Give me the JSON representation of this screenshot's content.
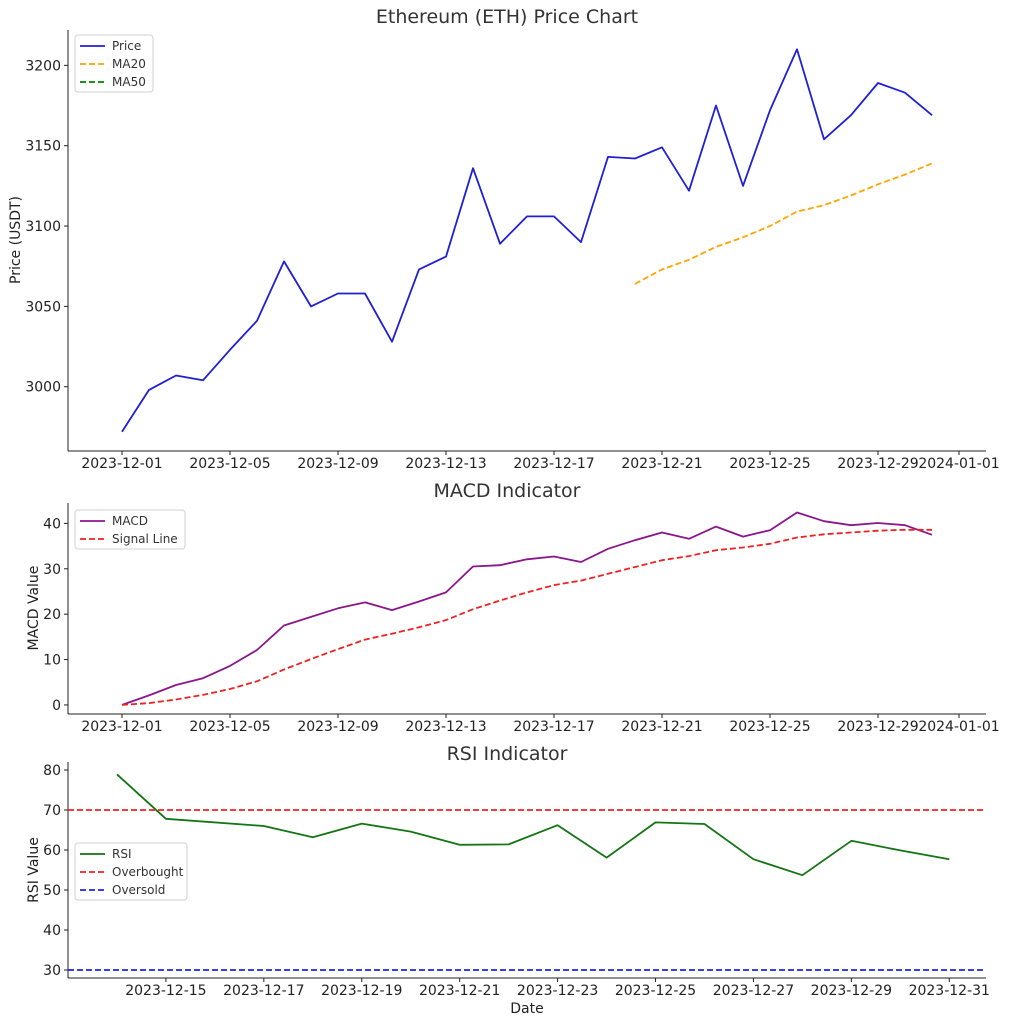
{
  "chart_data": [
    {
      "type": "line",
      "title": "Ethereum (ETH) Price Chart",
      "xlabel": "",
      "ylabel": "Price (USDT)",
      "x_ticks": [
        "2023-12-01",
        "2023-12-05",
        "2023-12-09",
        "2023-12-13",
        "2023-12-17",
        "2023-12-21",
        "2023-12-25",
        "2023-12-29",
        "2024-01-01"
      ],
      "y_ticks": [
        "3000",
        "3050",
        "3100",
        "3150",
        "3200"
      ],
      "x_range": [
        "2023-11-29",
        "2024-01-02"
      ],
      "ylim": [
        2960,
        3222
      ],
      "legend_position": "top-left",
      "series": [
        {
          "name": "Price",
          "color": "#1f1fd6",
          "dash": "solid",
          "x": [
            "2023-12-01",
            "2023-12-02",
            "2023-12-03",
            "2023-12-04",
            "2023-12-05",
            "2023-12-06",
            "2023-12-07",
            "2023-12-08",
            "2023-12-09",
            "2023-12-10",
            "2023-12-11",
            "2023-12-12",
            "2023-12-13",
            "2023-12-14",
            "2023-12-15",
            "2023-12-16",
            "2023-12-17",
            "2023-12-18",
            "2023-12-19",
            "2023-12-20",
            "2023-12-21",
            "2023-12-22",
            "2023-12-23",
            "2023-12-24",
            "2023-12-25",
            "2023-12-26",
            "2023-12-27",
            "2023-12-28",
            "2023-12-29",
            "2023-12-30",
            "2023-12-31"
          ],
          "values": [
            2972,
            2998,
            3007,
            3004,
            3023,
            3041,
            3078,
            3050,
            3058,
            3058,
            3028,
            3073,
            3081,
            3136,
            3089,
            3106,
            3106,
            3090,
            3143,
            3142,
            3149,
            3122,
            3175,
            3125,
            3172,
            3210,
            3154,
            3169,
            3189,
            3183,
            3169
          ]
        },
        {
          "name": "MA20",
          "color": "#ffa500",
          "dash": "dashed",
          "x": [
            "2023-12-20",
            "2023-12-21",
            "2023-12-22",
            "2023-12-23",
            "2023-12-24",
            "2023-12-25",
            "2023-12-26",
            "2023-12-27",
            "2023-12-28",
            "2023-12-29",
            "2023-12-30",
            "2023-12-31"
          ],
          "values": [
            3064,
            3073,
            3079,
            3087,
            3093,
            3100,
            3109,
            3113,
            3119,
            3126,
            3132,
            3139
          ]
        },
        {
          "name": "MA50",
          "color": "#008000",
          "dash": "dashed",
          "x": [],
          "values": []
        }
      ]
    },
    {
      "type": "line",
      "title": "MACD Indicator",
      "xlabel": "",
      "ylabel": "MACD Value",
      "x_ticks": [
        "2023-12-01",
        "2023-12-05",
        "2023-12-09",
        "2023-12-13",
        "2023-12-17",
        "2023-12-21",
        "2023-12-25",
        "2023-12-29",
        "2024-01-01"
      ],
      "y_ticks": [
        "0",
        "10",
        "20",
        "30",
        "40"
      ],
      "x_range": [
        "2023-11-29",
        "2024-01-02"
      ],
      "ylim": [
        -2,
        44.5
      ],
      "legend_position": "top-left",
      "series": [
        {
          "name": "MACD",
          "color": "#8b168b",
          "dash": "solid",
          "x": [
            "2023-12-01",
            "2023-12-02",
            "2023-12-03",
            "2023-12-04",
            "2023-12-05",
            "2023-12-06",
            "2023-12-07",
            "2023-12-08",
            "2023-12-09",
            "2023-12-10",
            "2023-12-11",
            "2023-12-12",
            "2023-12-13",
            "2023-12-14",
            "2023-12-15",
            "2023-12-16",
            "2023-12-17",
            "2023-12-18",
            "2023-12-19",
            "2023-12-20",
            "2023-12-21",
            "2023-12-22",
            "2023-12-23",
            "2023-12-24",
            "2023-12-25",
            "2023-12-26",
            "2023-12-27",
            "2023-12-28",
            "2023-12-29",
            "2023-12-30",
            "2023-12-31"
          ],
          "values": [
            0,
            2.1,
            4.4,
            5.9,
            8.6,
            12.1,
            17.5,
            19.4,
            21.3,
            22.6,
            20.9,
            22.8,
            24.8,
            30.5,
            30.8,
            32.1,
            32.7,
            31.5,
            34.4,
            36.3,
            38.0,
            36.6,
            39.3,
            37.1,
            38.5,
            42.4,
            40.5,
            39.6,
            40.1,
            39.6,
            37.5
          ]
        },
        {
          "name": "Signal Line",
          "color": "#ee2222",
          "dash": "dashed",
          "x": [
            "2023-12-01",
            "2023-12-02",
            "2023-12-03",
            "2023-12-04",
            "2023-12-05",
            "2023-12-06",
            "2023-12-07",
            "2023-12-08",
            "2023-12-09",
            "2023-12-10",
            "2023-12-11",
            "2023-12-12",
            "2023-12-13",
            "2023-12-14",
            "2023-12-15",
            "2023-12-16",
            "2023-12-17",
            "2023-12-18",
            "2023-12-19",
            "2023-12-20",
            "2023-12-21",
            "2023-12-22",
            "2023-12-23",
            "2023-12-24",
            "2023-12-25",
            "2023-12-26",
            "2023-12-27",
            "2023-12-28",
            "2023-12-29",
            "2023-12-30",
            "2023-12-31"
          ],
          "values": [
            0,
            0.4,
            1.2,
            2.2,
            3.5,
            5.2,
            7.8,
            10.1,
            12.3,
            14.4,
            15.7,
            17.1,
            18.7,
            21.1,
            23.0,
            24.8,
            26.4,
            27.4,
            28.9,
            30.4,
            31.9,
            32.8,
            34.1,
            34.7,
            35.5,
            36.9,
            37.6,
            38.0,
            38.4,
            38.6,
            38.6
          ]
        }
      ]
    },
    {
      "type": "line",
      "title": "RSI Indicator",
      "xlabel": "Date",
      "ylabel": "RSI Value",
      "x_ticks": [
        "2023-12-15",
        "2023-12-17",
        "2023-12-19",
        "2023-12-21",
        "2023-12-23",
        "2023-12-25",
        "2023-12-27",
        "2023-12-29",
        "2023-12-31"
      ],
      "y_ticks": [
        "30",
        "40",
        "50",
        "60",
        "70",
        "80"
      ],
      "x_range": [
        "2023-12-13",
        "2023-12-31T18:00"
      ],
      "ylim": [
        28,
        82
      ],
      "legend_position": "center-left",
      "series": [
        {
          "name": "RSI",
          "color": "#137513",
          "dash": "solid",
          "x": [
            "2023-12-14",
            "2023-12-15",
            "2023-12-17",
            "2023-12-18",
            "2023-12-19",
            "2023-12-20",
            "2023-12-21",
            "2023-12-22",
            "2023-12-23",
            "2023-12-24",
            "2023-12-25",
            "2023-12-26",
            "2023-12-27",
            "2023-12-28",
            "2023-12-29",
            "2023-12-30",
            "2023-12-31"
          ],
          "values": [
            78.9,
            67.8,
            66.0,
            63.2,
            66.6,
            64.6,
            61.3,
            61.4,
            66.2,
            58.1,
            66.9,
            66.5,
            57.7,
            53.7,
            62.3,
            59.9,
            57.7
          ]
        },
        {
          "name": "Overbought",
          "color": "#ee2222",
          "dash": "dashed",
          "hline": 70
        },
        {
          "name": "Oversold",
          "color": "#2222dd",
          "dash": "dashed",
          "hline": 30
        }
      ]
    }
  ]
}
